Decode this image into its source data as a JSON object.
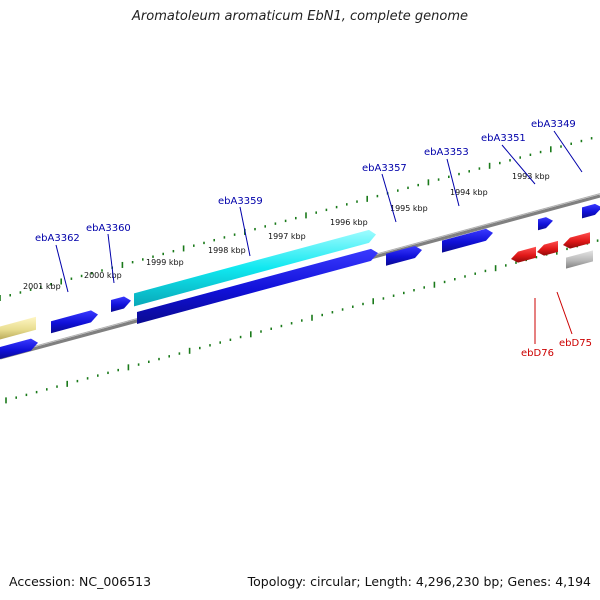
{
  "title": "Aromatoleum aromaticum EbN1, complete genome",
  "footer": {
    "accession": "Accession: NC_006513",
    "summary": "Topology: circular; Length: 4,296,230 bp; Genes: 4,194"
  },
  "colors": {
    "forward_gene": "#1010d8",
    "highlight_gene": "#10e8f0",
    "trna_gene": "#e01818",
    "pseudo_gene": "#b8b8b8",
    "other_feature": "#e8dd90",
    "tick": "#1a7a1a",
    "backbone": "#808080",
    "locus_tag_blue": "#0000aa",
    "locus_tag_red": "#cc0000"
  },
  "ticks": [
    {
      "label": "2001 kbp"
    },
    {
      "label": "2000 kbp"
    },
    {
      "label": "1999 kbp"
    },
    {
      "label": "1998 kbp"
    },
    {
      "label": "1997 kbp"
    },
    {
      "label": "1996 kbp"
    },
    {
      "label": "1995 kbp"
    },
    {
      "label": "1994 kbp"
    },
    {
      "label": "1993 kbp"
    }
  ],
  "genes": [
    {
      "locus_tag": "ebA3362",
      "type": "CDS"
    },
    {
      "locus_tag": "ebA3360",
      "type": "CDS"
    },
    {
      "locus_tag": "ebA3359",
      "type": "CDS"
    },
    {
      "locus_tag": "ebA3357",
      "type": "CDS"
    },
    {
      "locus_tag": "ebA3353",
      "type": "CDS"
    },
    {
      "locus_tag": "ebA3351",
      "type": "CDS"
    },
    {
      "locus_tag": "ebA3349",
      "type": "CDS"
    },
    {
      "locus_tag": "ebD76",
      "type": "tRNA"
    },
    {
      "locus_tag": "ebD75",
      "type": "tRNA"
    }
  ]
}
